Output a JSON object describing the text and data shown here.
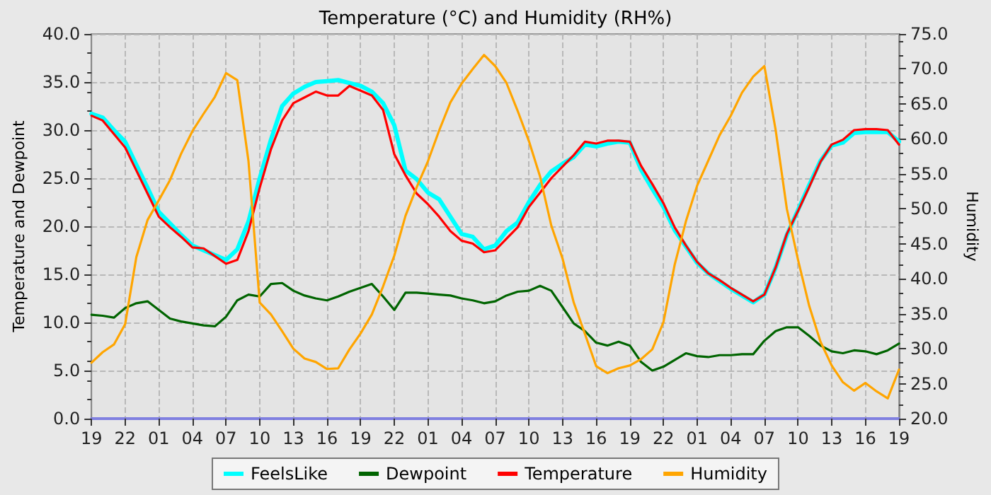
{
  "chart_data": {
    "type": "line",
    "title": "Temperature (°C) and Humidity (RH%)",
    "ylabel": "Temperature and Dewpoint",
    "y2label": "Humidity",
    "categories": [
      "19",
      null,
      null,
      "22",
      null,
      null,
      "01",
      null,
      null,
      "04",
      null,
      null,
      "07",
      null,
      null,
      "10",
      null,
      null,
      "13",
      null,
      null,
      "16",
      null,
      null,
      "19",
      null,
      null,
      "22",
      null,
      null,
      "01",
      null,
      null,
      "04",
      null,
      null,
      "07",
      null,
      null,
      "10",
      null,
      null,
      "13",
      null,
      null,
      "16",
      null,
      null,
      "19",
      null,
      null,
      "22",
      null,
      null,
      "01",
      null,
      null,
      "04",
      null,
      null,
      "07",
      null,
      null,
      "10",
      null,
      null,
      "13",
      null,
      null,
      "16",
      null,
      null,
      "19"
    ],
    "ylim": [
      0,
      40
    ],
    "yticks": [
      {
        "value": 0,
        "label": "0.0"
      },
      {
        "value": 5,
        "label": "5.0"
      },
      {
        "value": 10,
        "label": "10.0"
      },
      {
        "value": 15,
        "label": "15.0"
      },
      {
        "value": 20,
        "label": "20.0"
      },
      {
        "value": 25,
        "label": "25.0"
      },
      {
        "value": 30,
        "label": "30.0"
      },
      {
        "value": 35,
        "label": "35.0"
      },
      {
        "value": 40,
        "label": "40.0"
      }
    ],
    "y2lim": [
      20,
      75
    ],
    "y2ticks": [
      {
        "value": 20,
        "label": "20.0"
      },
      {
        "value": 25,
        "label": "25.0"
      },
      {
        "value": 30,
        "label": "30.0"
      },
      {
        "value": 35,
        "label": "35.0"
      },
      {
        "value": 40,
        "label": "40.0"
      },
      {
        "value": 45,
        "label": "45.0"
      },
      {
        "value": 50,
        "label": "50.0"
      },
      {
        "value": 55,
        "label": "55.0"
      },
      {
        "value": 60,
        "label": "60.0"
      },
      {
        "value": 65,
        "label": "65.0"
      },
      {
        "value": 70,
        "label": "70.0"
      },
      {
        "value": 75,
        "label": "75.0"
      }
    ],
    "grid": true,
    "legend": "bottom",
    "marker": "none",
    "line_style": "solid",
    "series": [
      {
        "name": "FeelsLike",
        "color": "#00ffff",
        "values": [
          31.7,
          31.3,
          30.0,
          28.8,
          26.4,
          24.0,
          21.5,
          20.3,
          19.1,
          18.0,
          17.5,
          17.0,
          16.5,
          17.6,
          20.5,
          25,
          29,
          32.5,
          33.8,
          34.5,
          35.0,
          35.1,
          35.2,
          34.9,
          34.6,
          34,
          32.8,
          30.5,
          25.8,
          24.9,
          23.5,
          22.8,
          21,
          19.2,
          18.9,
          17.6,
          18,
          19.5,
          20.4,
          22.5,
          24.3,
          25.7,
          26.5,
          27.2,
          28.5,
          28.3,
          28.6,
          28.8,
          28.7,
          25.9,
          23.9,
          22.0,
          19.6,
          17.9,
          16.2,
          15.1,
          14.3,
          13.5,
          12.8,
          12.1,
          12.9,
          15.7,
          19.1,
          21.7,
          24.3,
          26.8,
          28.4,
          28.7,
          29.7,
          29.8,
          29.8,
          29.8,
          28.8
        ]
      },
      {
        "name": "Dewpoint",
        "color": "#006400",
        "values": [
          10.8,
          10.7,
          10.5,
          11.5,
          12.0,
          12.2,
          11.3,
          10.4,
          10.1,
          9.9,
          9.7,
          9.6,
          10.6,
          12.3,
          12.9,
          12.7,
          14.0,
          14.1,
          13.3,
          12.8,
          12.5,
          12.3,
          12.7,
          13.2,
          13.6,
          14.0,
          12.7,
          11.3,
          13.1,
          13.1,
          13.0,
          12.9,
          12.8,
          12.5,
          12.3,
          12.0,
          12.2,
          12.8,
          13.2,
          13.3,
          13.8,
          13.3,
          11.6,
          9.9,
          9.1,
          7.9,
          7.6,
          8.0,
          7.6,
          5.9,
          5.0,
          5.4,
          6.1,
          6.8,
          6.5,
          6.4,
          6.6,
          6.6,
          6.7,
          6.7,
          8.1,
          9.1,
          9.5,
          9.5,
          8.6,
          7.6,
          7.0,
          6.8,
          7.1,
          7.0,
          6.7,
          7.1,
          7.8
        ]
      },
      {
        "name": "Temperature",
        "color": "#ff0000",
        "values": [
          31.5,
          31.0,
          29.6,
          28.2,
          25.8,
          23.4,
          21,
          19.9,
          18.9,
          17.8,
          17.7,
          16.9,
          16.1,
          16.5,
          19.5,
          24,
          28,
          31,
          32.8,
          33.4,
          34.0,
          33.6,
          33.6,
          34.6,
          34.1,
          33.6,
          32.1,
          27.5,
          25.3,
          23.4,
          22.3,
          21,
          19.5,
          18.5,
          18.2,
          17.3,
          17.5,
          18.7,
          19.9,
          22,
          23.5,
          25.0,
          26.2,
          27.4,
          28.8,
          28.6,
          28.9,
          28.9,
          28.8,
          26.3,
          24.4,
          22.4,
          19.9,
          18.0,
          16.3,
          15.1,
          14.4,
          13.6,
          12.9,
          12.2,
          12.9,
          15.7,
          19.2,
          21.6,
          24.1,
          26.7,
          28.5,
          29.0,
          30.0,
          30.1,
          30.1,
          30.0,
          28.5
        ]
      },
      {
        "name": "Humidity",
        "color": "#ffa500",
        "axis": "y2",
        "values": [
          28.0,
          29.5,
          30.6,
          33.5,
          43.1,
          48.4,
          51.2,
          54.1,
          57.9,
          61.1,
          63.6,
          66.0,
          69.4,
          68.4,
          56.8,
          36.6,
          34.9,
          32.5,
          30.0,
          28.6,
          28.1,
          27.1,
          27.2,
          29.9,
          32.2,
          34.9,
          38.9,
          43.3,
          49.0,
          53.1,
          56.8,
          61.2,
          65.2,
          67.9,
          70.0,
          72.0,
          70.4,
          68.0,
          64.0,
          59.7,
          54.6,
          47.6,
          42.9,
          36.6,
          32.1,
          27.5,
          26.5,
          27.2,
          27.6,
          28.5,
          29.9,
          33.8,
          42.0,
          48.2,
          53.3,
          56.9,
          60.5,
          63.3,
          66.6,
          68.9,
          70.4,
          61.3,
          50.0,
          42.7,
          36.1,
          31.0,
          27.6,
          25.2,
          24.0,
          25.1,
          23.9,
          22.9,
          27.0
        ]
      }
    ]
  }
}
